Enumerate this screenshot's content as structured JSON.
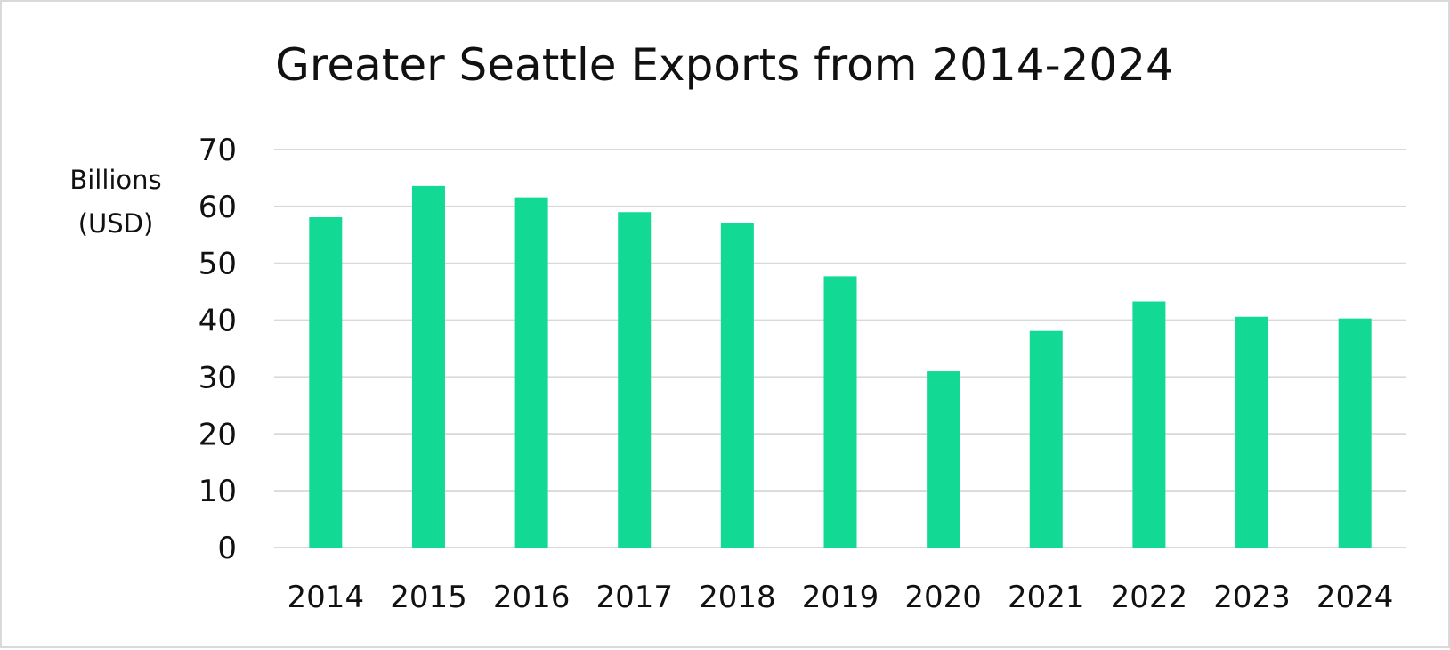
{
  "chart_data": {
    "type": "bar",
    "title": "Greater Seattle Exports from 2014-2024",
    "ylabel_lines": [
      "Billions",
      "(USD)"
    ],
    "xlabel": "",
    "categories": [
      "2014",
      "2015",
      "2016",
      "2017",
      "2018",
      "2019",
      "2020",
      "2021",
      "2022",
      "2023",
      "2024"
    ],
    "values": [
      58.1,
      63.6,
      61.6,
      59.0,
      57.0,
      47.7,
      31.0,
      38.1,
      43.3,
      40.6,
      40.3
    ],
    "ylim": [
      0,
      70
    ],
    "yticks": [
      "0",
      "10",
      "20",
      "30",
      "40",
      "50",
      "60",
      "70"
    ],
    "grid": true,
    "legend": "none",
    "bar_color": "#12d994",
    "grid_color": "#d9d9d9"
  }
}
